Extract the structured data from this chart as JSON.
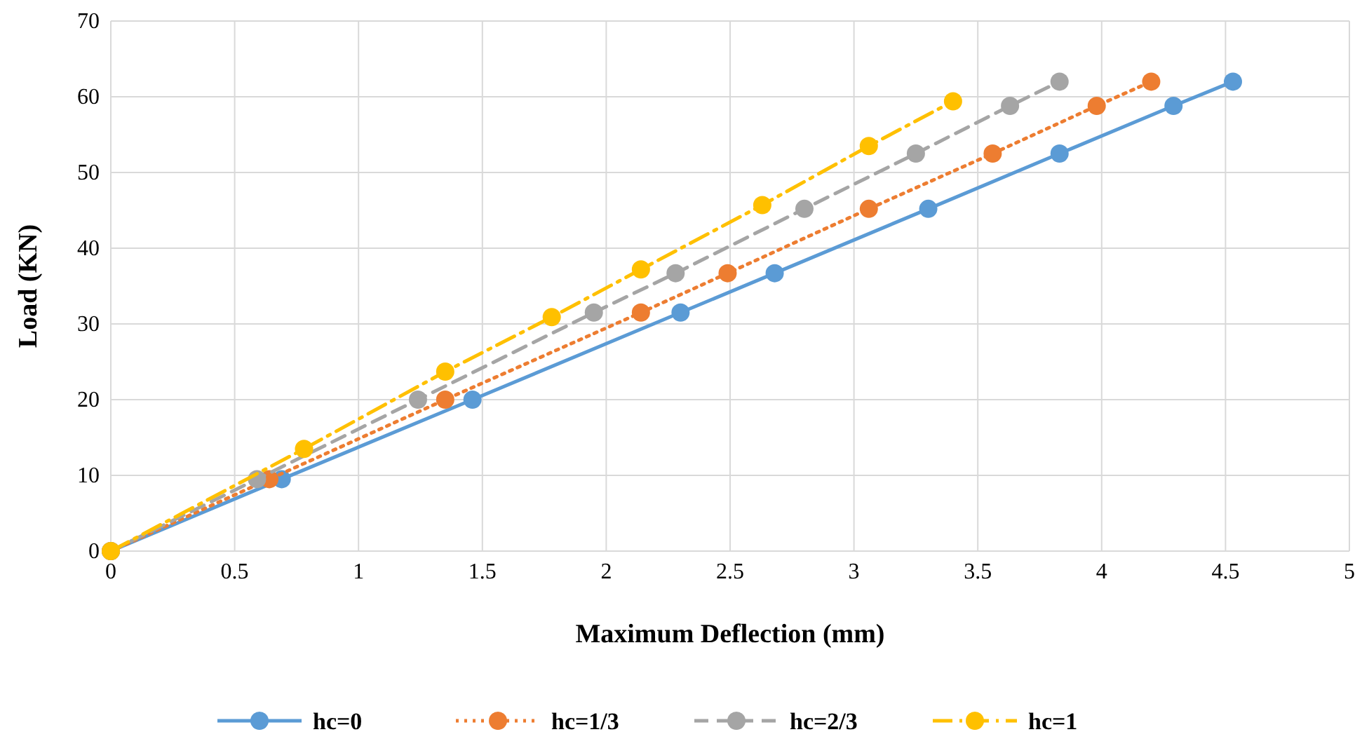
{
  "chart_data": {
    "type": "line",
    "xlabel": "Maximum Deflection (mm)",
    "ylabel": "Load (KN)",
    "xlim": [
      0,
      5
    ],
    "xticks": [
      0,
      0.5,
      1,
      1.5,
      2,
      2.5,
      3,
      3.5,
      4,
      4.5,
      5
    ],
    "ylim": [
      0,
      70
    ],
    "yticks": [
      0,
      10,
      20,
      30,
      40,
      50,
      60,
      70
    ],
    "grid": true,
    "legend": "bottom",
    "marker": "circle",
    "series": [
      {
        "name": "hc=0",
        "color": "#5b9bd5",
        "line_style": "solid",
        "x": [
          0,
          0.69,
          1.46,
          2.3,
          2.68,
          3.3,
          3.83,
          4.29,
          4.53
        ],
        "values": [
          0,
          9.5,
          20,
          31.5,
          36.7,
          45.2,
          52.5,
          58.8,
          62
        ]
      },
      {
        "name": "hc=1/3",
        "color": "#ed7d31",
        "line_style": "dotted",
        "x": [
          0,
          0.64,
          1.35,
          2.14,
          2.49,
          3.06,
          3.56,
          3.98,
          4.2
        ],
        "values": [
          0,
          9.5,
          20,
          31.5,
          36.7,
          45.2,
          52.5,
          58.8,
          62
        ]
      },
      {
        "name": "hc=2/3",
        "color": "#a5a5a5",
        "line_style": "dashed",
        "x": [
          0,
          0.59,
          1.24,
          1.95,
          2.28,
          2.8,
          3.25,
          3.63,
          3.83
        ],
        "values": [
          0,
          9.5,
          20,
          31.5,
          36.7,
          45.2,
          52.5,
          58.8,
          62
        ]
      },
      {
        "name": "hc=1",
        "color": "#ffc000",
        "line_style": "dashdot",
        "x": [
          0,
          0.78,
          1.35,
          1.78,
          2.14,
          2.63,
          3.06,
          3.4
        ],
        "values": [
          0,
          13.5,
          23.7,
          30.9,
          37.2,
          45.7,
          53.5,
          59.4
        ]
      }
    ]
  }
}
